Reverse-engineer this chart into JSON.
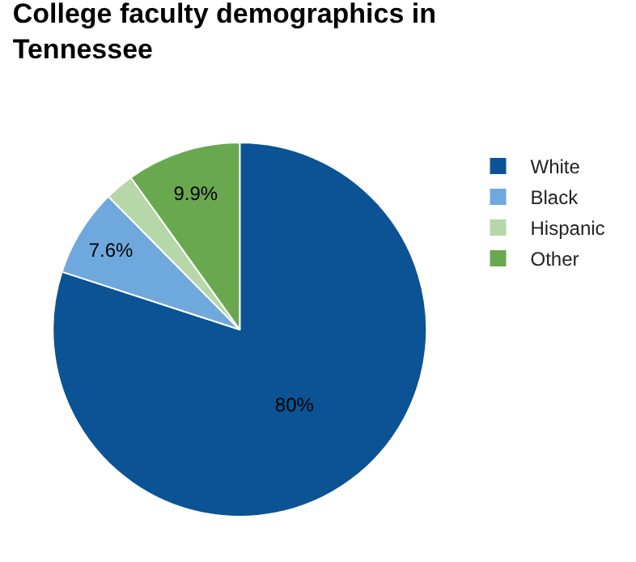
{
  "chart_data": {
    "type": "pie",
    "title": "College faculty demographics in Tennessee",
    "categories": [
      "White",
      "Black",
      "Hispanic",
      "Other"
    ],
    "values": [
      80,
      7.6,
      2.5,
      9.9
    ],
    "value_labels": [
      "80%",
      "7.6%",
      null,
      "9.9%"
    ],
    "colors": [
      "#0b5394",
      "#6fa8dc",
      "#b6d7a8",
      "#6aa84f"
    ],
    "legend": "top right"
  }
}
